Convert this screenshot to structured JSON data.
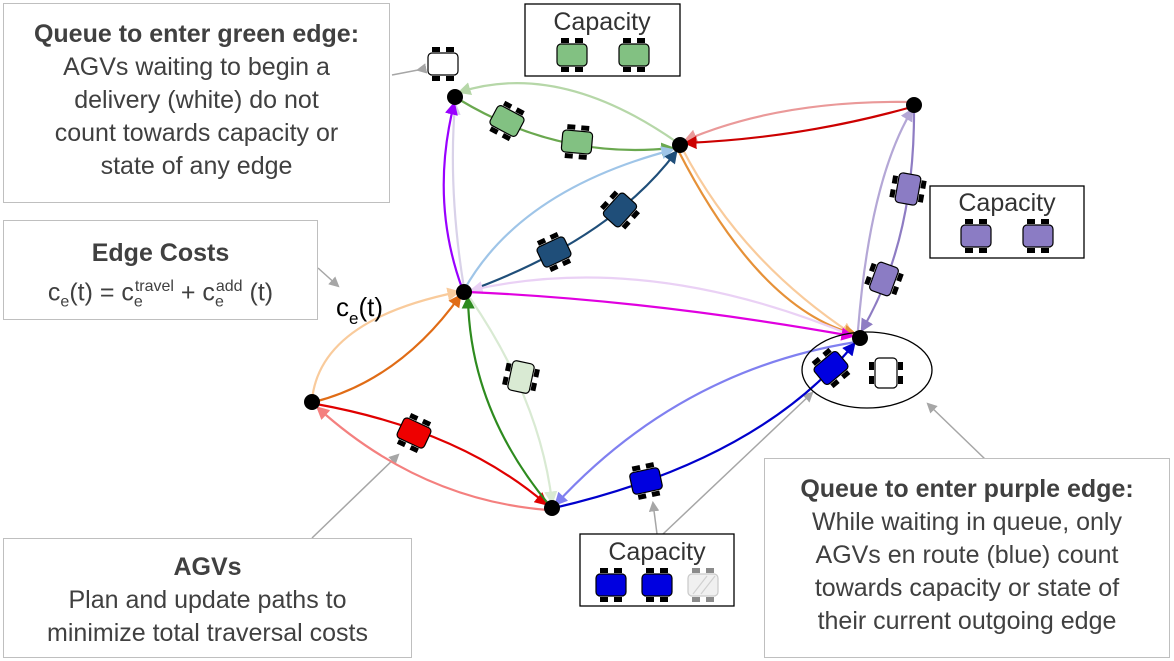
{
  "callouts": {
    "green_queue": {
      "title": "Queue to enter green edge:",
      "lines": [
        "AGVs waiting to begin a",
        "delivery (white) do not",
        "count towards capacity or",
        "state of any edge"
      ]
    },
    "edge_costs": {
      "title": "Edge Costs",
      "formula": {
        "c": "c",
        "e": "e",
        "t": "(t) = c",
        "travel": "travel",
        "plus": " + c",
        "add": "add",
        "tail": " (t)"
      }
    },
    "agvs": {
      "title": "AGVs",
      "lines": [
        "Plan and update paths to",
        "minimize total traversal costs"
      ]
    },
    "purple_queue": {
      "title": "Queue to enter purple edge:",
      "lines": [
        "While waiting in queue, only",
        "AGVs en route (blue) count",
        "towards capacity or state of",
        "their current outgoing edge"
      ]
    }
  },
  "capacity_boxes": {
    "green": {
      "title": "Capacity",
      "color": "#82c182"
    },
    "purple": {
      "title": "Capacity",
      "color": "#8b7cc4"
    },
    "blue": {
      "title": "Capacity",
      "color": "#0000e0"
    }
  },
  "edge_label": {
    "c": "c",
    "e": "e",
    "t": "(t)"
  },
  "colors": {
    "green": "#6aa84f",
    "purple": "#8e7cc3",
    "blue": "#0000cc",
    "navy": "#1f4e79",
    "red": "#cc0000",
    "orange": "#e69138",
    "magenta": "#e000e0",
    "violet": "#9900ff"
  }
}
